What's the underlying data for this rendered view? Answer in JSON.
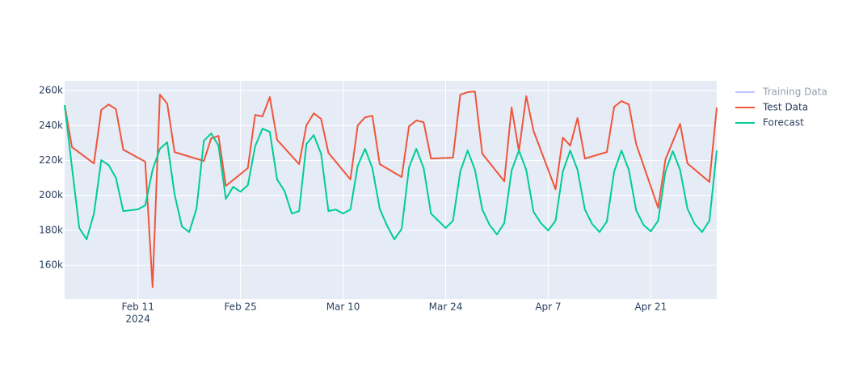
{
  "chart_data": {
    "type": "line",
    "xlim": [
      "2024-02-01",
      "2024-04-30"
    ],
    "ylim": [
      140600,
      265600
    ],
    "xticks": [
      {
        "value": "2024-02-11",
        "label": "Feb 11"
      },
      {
        "value": "2024-02-25",
        "label": "Feb 25"
      },
      {
        "value": "2024-03-10",
        "label": "Mar 10"
      },
      {
        "value": "2024-03-24",
        "label": "Mar 24"
      },
      {
        "value": "2024-04-07",
        "label": "Apr 7"
      },
      {
        "value": "2024-04-21",
        "label": "Apr 21"
      }
    ],
    "x_year_label": "2024",
    "yticks": [
      {
        "value": 160000,
        "label": "160k"
      },
      {
        "value": 180000,
        "label": "180k"
      },
      {
        "value": 200000,
        "label": "200k"
      },
      {
        "value": 220000,
        "label": "220k"
      },
      {
        "value": 240000,
        "label": "240k"
      },
      {
        "value": 260000,
        "label": "260k"
      }
    ],
    "grid": true,
    "legend": "right",
    "series": [
      {
        "name": "Training Data",
        "color": "#636efa",
        "visible": "legendonly",
        "x": [],
        "values": []
      },
      {
        "name": "Test Data",
        "color": "#ef553b",
        "x": [
          "2024-02-01",
          "2024-02-02",
          "2024-02-05",
          "2024-02-06",
          "2024-02-07",
          "2024-02-08",
          "2024-02-09",
          "2024-02-12",
          "2024-02-13",
          "2024-02-14",
          "2024-02-15",
          "2024-02-16",
          "2024-02-20",
          "2024-02-21",
          "2024-02-22",
          "2024-02-23",
          "2024-02-26",
          "2024-02-27",
          "2024-02-28",
          "2024-02-29",
          "2024-03-01",
          "2024-03-04",
          "2024-03-05",
          "2024-03-06",
          "2024-03-07",
          "2024-03-08",
          "2024-03-11",
          "2024-03-12",
          "2024-03-13",
          "2024-03-14",
          "2024-03-15",
          "2024-03-18",
          "2024-03-19",
          "2024-03-20",
          "2024-03-21",
          "2024-03-22",
          "2024-03-25",
          "2024-03-26",
          "2024-03-27",
          "2024-03-28",
          "2024-03-29",
          "2024-04-01",
          "2024-04-02",
          "2024-04-03",
          "2024-04-04",
          "2024-04-05",
          "2024-04-08",
          "2024-04-09",
          "2024-04-10",
          "2024-04-11",
          "2024-04-12",
          "2024-04-15",
          "2024-04-16",
          "2024-04-17",
          "2024-04-18",
          "2024-04-19",
          "2024-04-22",
          "2024-04-23",
          "2024-04-25",
          "2024-04-26",
          "2024-04-29",
          "2024-04-30"
        ],
        "values": [
          251700,
          227600,
          218300,
          248900,
          252100,
          249400,
          226200,
          219300,
          147500,
          257700,
          252600,
          224800,
          219700,
          232700,
          234100,
          205400,
          215600,
          246100,
          245200,
          256300,
          231800,
          217900,
          240100,
          247000,
          243800,
          224400,
          209100,
          240100,
          244700,
          245600,
          217900,
          210500,
          239600,
          242900,
          241900,
          221100,
          221600,
          257700,
          259100,
          259500,
          223900,
          208100,
          250300,
          225300,
          256800,
          236900,
          203500,
          233100,
          228500,
          244300,
          221100,
          224800,
          250700,
          254000,
          252100,
          229400,
          192900,
          220600,
          241000,
          218300,
          207700,
          250300
        ]
      },
      {
        "name": "Forecast",
        "color": "#00cc96",
        "x": [
          "2024-02-01",
          "2024-02-02",
          "2024-02-03",
          "2024-02-04",
          "2024-02-05",
          "2024-02-06",
          "2024-02-07",
          "2024-02-08",
          "2024-02-09",
          "2024-02-10",
          "2024-02-11",
          "2024-02-12",
          "2024-02-13",
          "2024-02-14",
          "2024-02-15",
          "2024-02-16",
          "2024-02-17",
          "2024-02-18",
          "2024-02-19",
          "2024-02-20",
          "2024-02-21",
          "2024-02-22",
          "2024-02-23",
          "2024-02-24",
          "2024-02-25",
          "2024-02-26",
          "2024-02-27",
          "2024-02-28",
          "2024-02-29",
          "2024-03-01",
          "2024-03-02",
          "2024-03-03",
          "2024-03-04",
          "2024-03-05",
          "2024-03-06",
          "2024-03-07",
          "2024-03-08",
          "2024-03-09",
          "2024-03-10",
          "2024-03-11",
          "2024-03-12",
          "2024-03-13",
          "2024-03-14",
          "2024-03-15",
          "2024-03-16",
          "2024-03-17",
          "2024-03-18",
          "2024-03-19",
          "2024-03-20",
          "2024-03-21",
          "2024-03-22",
          "2024-03-23",
          "2024-03-24",
          "2024-03-25",
          "2024-03-26",
          "2024-03-27",
          "2024-03-28",
          "2024-03-29",
          "2024-03-30",
          "2024-03-31",
          "2024-04-01",
          "2024-04-02",
          "2024-04-03",
          "2024-04-04",
          "2024-04-05",
          "2024-04-06",
          "2024-04-07",
          "2024-04-08",
          "2024-04-09",
          "2024-04-10",
          "2024-04-11",
          "2024-04-12",
          "2024-04-13",
          "2024-04-14",
          "2024-04-15",
          "2024-04-16",
          "2024-04-17",
          "2024-04-18",
          "2024-04-19",
          "2024-04-20",
          "2024-04-21",
          "2024-04-22",
          "2024-04-23",
          "2024-04-24",
          "2024-04-25",
          "2024-04-26",
          "2024-04-27",
          "2024-04-28",
          "2024-04-29",
          "2024-04-30"
        ],
        "values": [
          251700,
          216000,
          181300,
          174800,
          189600,
          220200,
          217400,
          210000,
          191000,
          191500,
          192000,
          194300,
          214600,
          226700,
          230400,
          200700,
          182200,
          179000,
          192400,
          231300,
          235500,
          228500,
          198000,
          204900,
          202100,
          205800,
          228100,
          238200,
          236400,
          209100,
          202600,
          189600,
          191000,
          229400,
          234500,
          223900,
          191000,
          191900,
          189600,
          191900,
          216900,
          226700,
          215600,
          192400,
          182700,
          174800,
          180800,
          216000,
          226700,
          215600,
          189600,
          185500,
          181300,
          185500,
          213700,
          225700,
          214600,
          191900,
          183100,
          177600,
          184100,
          214200,
          225700,
          214600,
          190600,
          184100,
          179900,
          185500,
          213700,
          225700,
          214600,
          191900,
          183600,
          179000,
          185000,
          213700,
          225700,
          214600,
          191500,
          183100,
          179400,
          185500,
          213700,
          225300,
          214600,
          192400,
          183600,
          179000,
          185500,
          225700
        ]
      }
    ]
  }
}
